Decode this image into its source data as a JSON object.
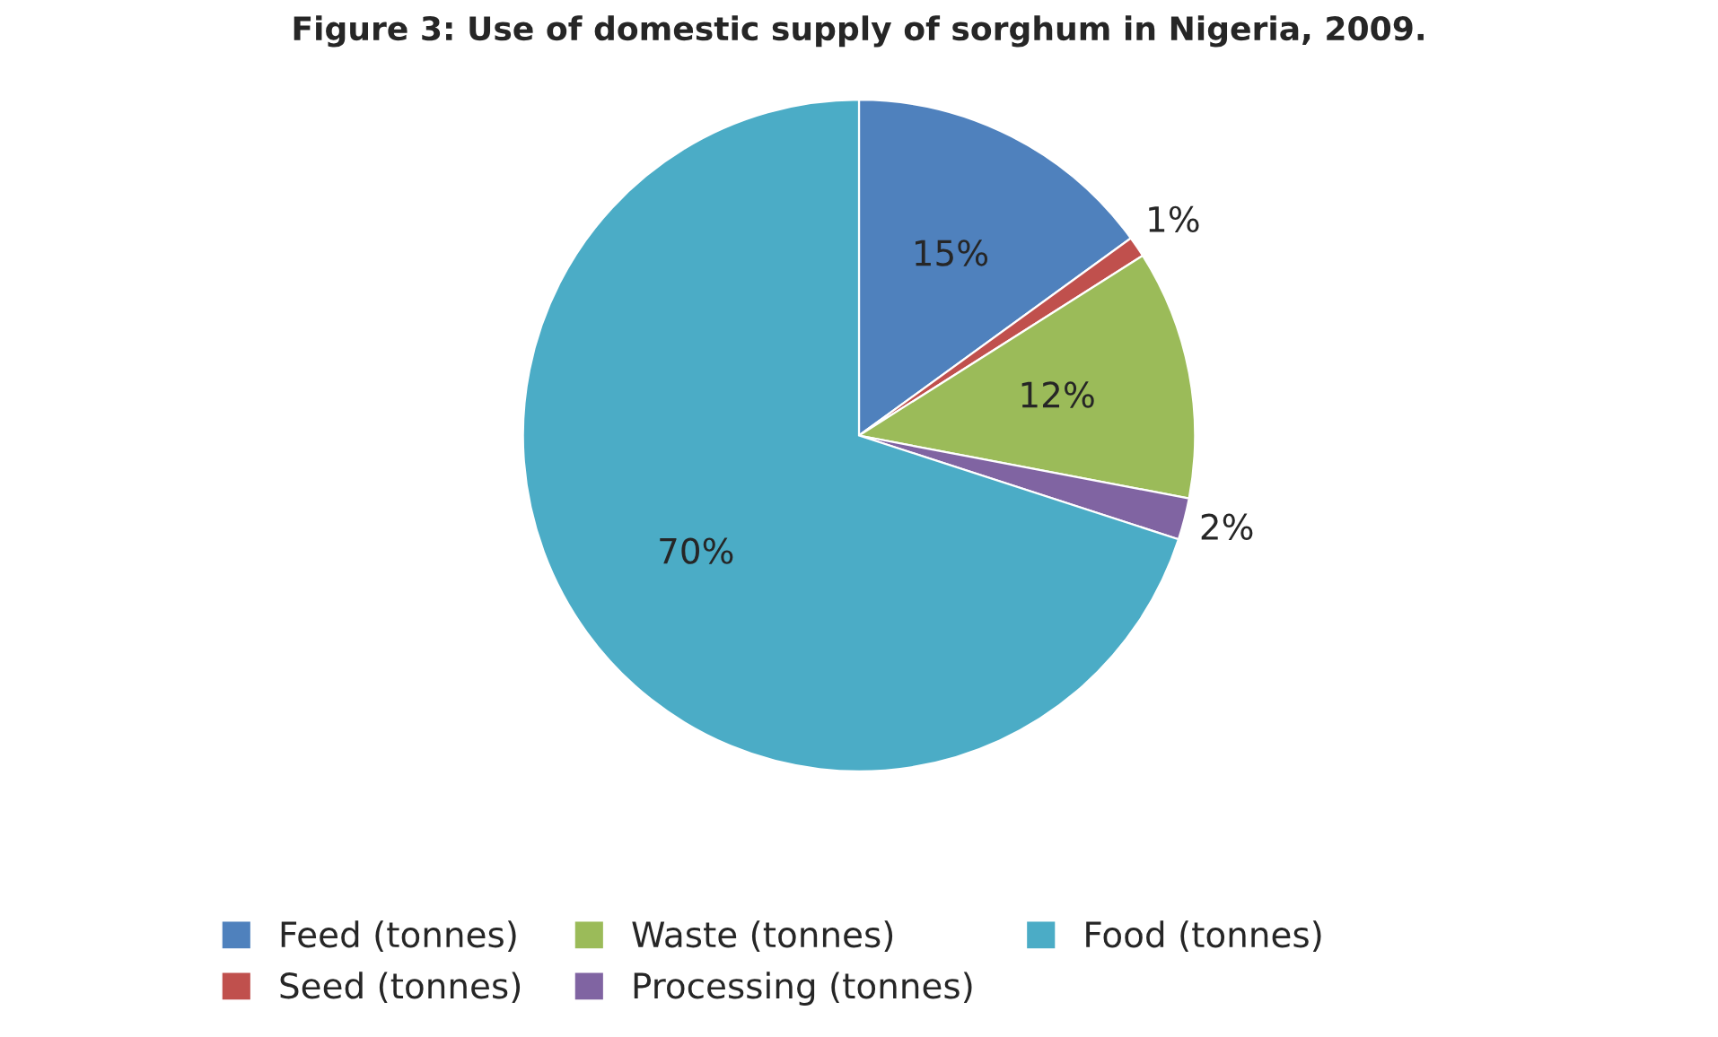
{
  "chart_data": {
    "type": "pie",
    "title": "Figure 3: Use of domestic supply of sorghum in Nigeria, 2009.",
    "categories": [
      "Feed (tonnes)",
      "Seed (tonnes)",
      "Waste (tonnes)",
      "Processing (tonnes)",
      "Food (tonnes)"
    ],
    "values": [
      15,
      1,
      12,
      2,
      70
    ],
    "colors": [
      "#4f81bd",
      "#c0504d",
      "#9bbb59",
      "#8064a2",
      "#4bacc6"
    ],
    "value_labels": [
      "15%",
      "1%",
      "12%",
      "2%",
      "70%"
    ],
    "legend": "bottom"
  }
}
